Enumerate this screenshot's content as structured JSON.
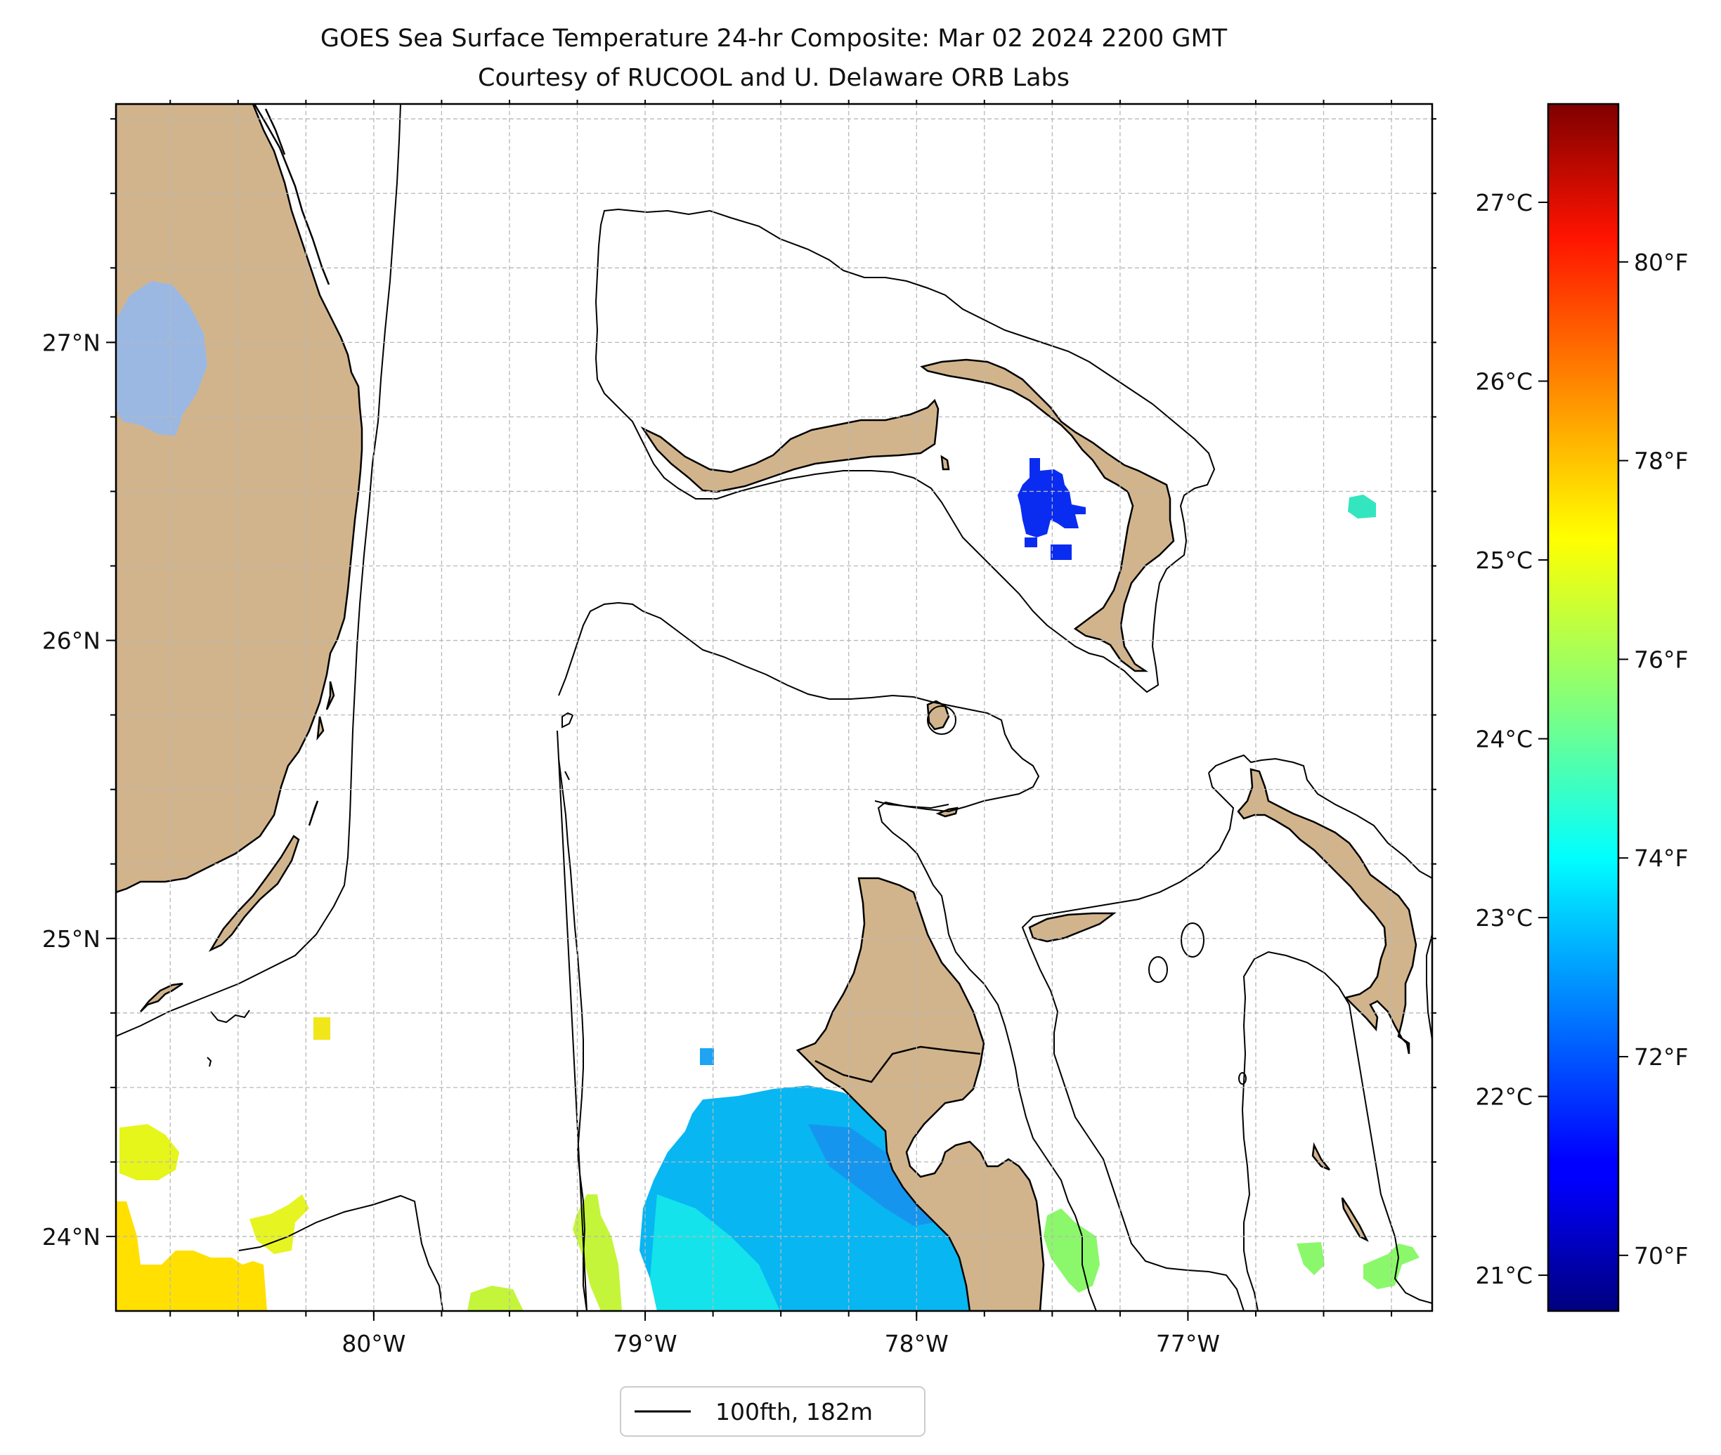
{
  "title": {
    "line1": "GOES Sea Surface Temperature 24-hr Composite: Mar 02 2024 2200 GMT",
    "line2": "Courtesy of RUCOOL and U. Delaware ORB Labs"
  },
  "map": {
    "lon_range": [
      -80.95,
      -76.1
    ],
    "lat_range": [
      23.75,
      27.8
    ],
    "lon_ticks": [
      {
        "value": -80,
        "label": "80°W"
      },
      {
        "value": -79,
        "label": "79°W"
      },
      {
        "value": -78,
        "label": "78°W"
      },
      {
        "value": -77,
        "label": "77°W"
      }
    ],
    "lat_ticks": [
      {
        "value": 24,
        "label": "24°N"
      },
      {
        "value": 25,
        "label": "25°N"
      },
      {
        "value": 26,
        "label": "26°N"
      },
      {
        "value": 27,
        "label": "27°N"
      }
    ],
    "grid": true,
    "land_color": "#d2b48c",
    "lake_color": "#9bb8e3",
    "legend": {
      "label": "100fth, 182m",
      "placement": "below-center"
    }
  },
  "colorbar": {
    "cmap": "jet",
    "celsius_ticks": [
      {
        "value": 21,
        "label": "21°C"
      },
      {
        "value": 22,
        "label": "22°C"
      },
      {
        "value": 23,
        "label": "23°C"
      },
      {
        "value": 24,
        "label": "24°C"
      },
      {
        "value": 25,
        "label": "25°C"
      },
      {
        "value": 26,
        "label": "26°C"
      },
      {
        "value": 27,
        "label": "27°C"
      }
    ],
    "fahrenheit_ticks": [
      {
        "value": 70,
        "label": "70°F"
      },
      {
        "value": 72,
        "label": "72°F"
      },
      {
        "value": 74,
        "label": "74°F"
      },
      {
        "value": 76,
        "label": "76°F"
      },
      {
        "value": 78,
        "label": "78°F"
      },
      {
        "value": 80,
        "label": "80°F"
      }
    ]
  },
  "sst_patches": [
    {
      "region": "western-bahama-bank-north",
      "color": "#0a2cf0"
    },
    {
      "region": "east-small",
      "color": "#33e6c0"
    },
    {
      "region": "tongue-of-ocean-south",
      "color": "#08b6f2"
    },
    {
      "region": "florida-bay-yellow",
      "color": "#ffe000"
    },
    {
      "region": "cuba-north-green",
      "color": "#c4f53a"
    },
    {
      "region": "exuma-green",
      "color": "#8af86a"
    }
  ]
}
